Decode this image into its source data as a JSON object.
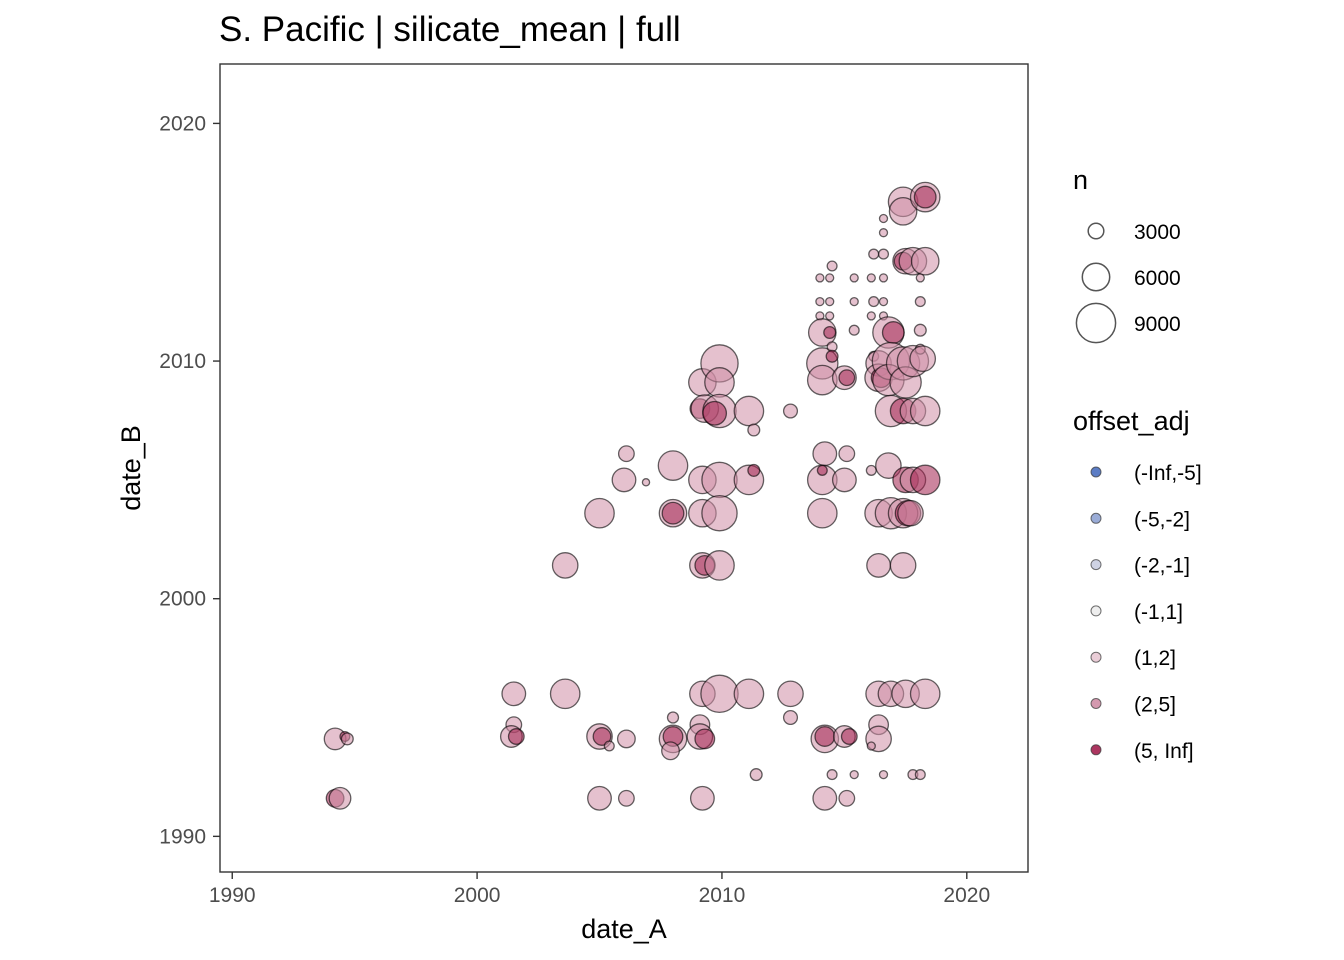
{
  "chart_data": {
    "type": "scatter",
    "title": "S. Pacific | silicate_mean | full",
    "xlabel": "date_A",
    "ylabel": "date_B",
    "xlim": [
      1989.5,
      2022.5
    ],
    "ylim": [
      1988.5,
      2022.5
    ],
    "x_ticks": [
      "1990",
      "2000",
      "2010",
      "2020"
    ],
    "y_ticks": [
      "1990",
      "2000",
      "2010",
      "2020"
    ],
    "grid": false,
    "legend_position": "right",
    "size_legend": {
      "title": "n",
      "entries": [
        {
          "label": "3000",
          "value": 3000
        },
        {
          "label": "6000",
          "value": 6000
        },
        {
          "label": "9000",
          "value": 9000
        }
      ]
    },
    "color_legend": {
      "title": "offset_adj",
      "entries": [
        {
          "label": "(-Inf,-5]",
          "color": "#4a6fbf"
        },
        {
          "label": "(-5,-2]",
          "color": "#8fa3d3"
        },
        {
          "label": "(-2,-1]",
          "color": "#c9cde0"
        },
        {
          "label": "(-1,1]",
          "color": "#ececec"
        },
        {
          "label": "(1,2]",
          "color": "#e8c8d3"
        },
        {
          "label": "(2,5]",
          "color": "#cf8ea6"
        },
        {
          "label": "(5, Inf]",
          "color": "#a3204f"
        }
      ]
    },
    "point_opacity": 0.55,
    "points": [
      {
        "x": 1994.2,
        "y": 1991.6,
        "n": 3500,
        "cls": "(5, Inf]"
      },
      {
        "x": 1994.4,
        "y": 1991.6,
        "n": 4500,
        "cls": "(2,5]"
      },
      {
        "x": 1994.2,
        "y": 1994.1,
        "n": 4500,
        "cls": "(2,5]"
      },
      {
        "x": 1994.6,
        "y": 1994.2,
        "n": 1500,
        "cls": "(5, Inf]"
      },
      {
        "x": 1994.7,
        "y": 1994.1,
        "n": 2000,
        "cls": "(2,5]"
      },
      {
        "x": 2001.5,
        "y": 1996.0,
        "n": 5000,
        "cls": "(2,5]"
      },
      {
        "x": 2001.5,
        "y": 1994.7,
        "n": 3000,
        "cls": "(2,5]"
      },
      {
        "x": 2001.4,
        "y": 1994.2,
        "n": 4500,
        "cls": "(2,5]"
      },
      {
        "x": 2001.6,
        "y": 1994.2,
        "n": 3000,
        "cls": "(5, Inf]"
      },
      {
        "x": 2003.6,
        "y": 1996.0,
        "n": 6500,
        "cls": "(2,5]"
      },
      {
        "x": 2003.6,
        "y": 2001.4,
        "n": 5500,
        "cls": "(2,5]"
      },
      {
        "x": 2005.0,
        "y": 2003.6,
        "n": 6500,
        "cls": "(2,5]"
      },
      {
        "x": 2005.0,
        "y": 1994.2,
        "n": 5500,
        "cls": "(2,5]"
      },
      {
        "x": 2005.1,
        "y": 1994.2,
        "n": 3500,
        "cls": "(5, Inf]"
      },
      {
        "x": 2005.4,
        "y": 1993.8,
        "n": 1500,
        "cls": "(2,5]"
      },
      {
        "x": 2005.0,
        "y": 1991.6,
        "n": 5000,
        "cls": "(2,5]"
      },
      {
        "x": 2006.1,
        "y": 2006.1,
        "n": 3000,
        "cls": "(2,5]"
      },
      {
        "x": 2006.0,
        "y": 2005.0,
        "n": 5000,
        "cls": "(2,5]"
      },
      {
        "x": 2006.1,
        "y": 1994.1,
        "n": 3500,
        "cls": "(2,5]"
      },
      {
        "x": 2006.1,
        "y": 1991.6,
        "n": 3000,
        "cls": "(2,5]"
      },
      {
        "x": 2006.9,
        "y": 2004.9,
        "n": 800,
        "cls": "(2,5]"
      },
      {
        "x": 2008.0,
        "y": 2005.6,
        "n": 6500,
        "cls": "(2,5]"
      },
      {
        "x": 2008.0,
        "y": 2003.6,
        "n": 6000,
        "cls": "(2,5]"
      },
      {
        "x": 2008.0,
        "y": 2003.6,
        "n": 4500,
        "cls": "(5, Inf]"
      },
      {
        "x": 2008.0,
        "y": 1994.1,
        "n": 6000,
        "cls": "(2,5]"
      },
      {
        "x": 2008.0,
        "y": 1994.2,
        "n": 4000,
        "cls": "(5, Inf]"
      },
      {
        "x": 2008.0,
        "y": 1995.0,
        "n": 1800,
        "cls": "(2,5]"
      },
      {
        "x": 2007.9,
        "y": 1993.6,
        "n": 3500,
        "cls": "(2,5]"
      },
      {
        "x": 2009.2,
        "y": 2009.1,
        "n": 6000,
        "cls": "(2,5]"
      },
      {
        "x": 2009.1,
        "y": 2008.0,
        "n": 4000,
        "cls": "(5, Inf]"
      },
      {
        "x": 2009.3,
        "y": 2008.0,
        "n": 6000,
        "cls": "(2,5]"
      },
      {
        "x": 2009.2,
        "y": 2005.0,
        "n": 6000,
        "cls": "(2,5]"
      },
      {
        "x": 2009.2,
        "y": 2003.6,
        "n": 6000,
        "cls": "(2,5]"
      },
      {
        "x": 2009.2,
        "y": 2001.4,
        "n": 5500,
        "cls": "(2,5]"
      },
      {
        "x": 2009.3,
        "y": 2001.4,
        "n": 4000,
        "cls": "(5, Inf]"
      },
      {
        "x": 2009.2,
        "y": 1996.0,
        "n": 5500,
        "cls": "(2,5]"
      },
      {
        "x": 2009.1,
        "y": 1994.7,
        "n": 4000,
        "cls": "(2,5]"
      },
      {
        "x": 2009.1,
        "y": 1994.2,
        "n": 5500,
        "cls": "(2,5]"
      },
      {
        "x": 2009.3,
        "y": 1994.1,
        "n": 4000,
        "cls": "(5, Inf]"
      },
      {
        "x": 2009.2,
        "y": 1991.6,
        "n": 5000,
        "cls": "(2,5]"
      },
      {
        "x": 2009.9,
        "y": 2009.9,
        "n": 8500,
        "cls": "(2,5]"
      },
      {
        "x": 2009.9,
        "y": 2009.1,
        "n": 6500,
        "cls": "(2,5]"
      },
      {
        "x": 2009.9,
        "y": 2007.9,
        "n": 7500,
        "cls": "(2,5]"
      },
      {
        "x": 2009.7,
        "y": 2007.8,
        "n": 5000,
        "cls": "(5, Inf]"
      },
      {
        "x": 2009.9,
        "y": 2005.0,
        "n": 8000,
        "cls": "(2,5]"
      },
      {
        "x": 2009.9,
        "y": 2003.6,
        "n": 8000,
        "cls": "(2,5]"
      },
      {
        "x": 2009.9,
        "y": 2001.4,
        "n": 6500,
        "cls": "(2,5]"
      },
      {
        "x": 2009.9,
        "y": 1996.0,
        "n": 8500,
        "cls": "(2,5]"
      },
      {
        "x": 2011.1,
        "y": 2007.9,
        "n": 6500,
        "cls": "(2,5]"
      },
      {
        "x": 2011.3,
        "y": 2007.1,
        "n": 2000,
        "cls": "(2,5]"
      },
      {
        "x": 2011.1,
        "y": 2005.0,
        "n": 6500,
        "cls": "(2,5]"
      },
      {
        "x": 2011.3,
        "y": 2005.4,
        "n": 2000,
        "cls": "(5, Inf]"
      },
      {
        "x": 2011.1,
        "y": 1996.0,
        "n": 6500,
        "cls": "(2,5]"
      },
      {
        "x": 2011.4,
        "y": 1992.6,
        "n": 2000,
        "cls": "(2,5]"
      },
      {
        "x": 2012.8,
        "y": 2007.9,
        "n": 2500,
        "cls": "(2,5]"
      },
      {
        "x": 2012.8,
        "y": 1996.0,
        "n": 5500,
        "cls": "(2,5]"
      },
      {
        "x": 2012.8,
        "y": 1995.0,
        "n": 2500,
        "cls": "(2,5]"
      },
      {
        "x": 2014.0,
        "y": 2013.5,
        "n": 1000,
        "cls": "(2,5]"
      },
      {
        "x": 2014.0,
        "y": 2012.5,
        "n": 1000,
        "cls": "(2,5]"
      },
      {
        "x": 2014.0,
        "y": 2011.9,
        "n": 1000,
        "cls": "(2,5]"
      },
      {
        "x": 2014.1,
        "y": 2011.2,
        "n": 6000,
        "cls": "(2,5]"
      },
      {
        "x": 2014.1,
        "y": 2009.9,
        "n": 7000,
        "cls": "(2,5]"
      },
      {
        "x": 2014.1,
        "y": 2009.2,
        "n": 6500,
        "cls": "(2,5]"
      },
      {
        "x": 2014.2,
        "y": 2006.1,
        "n": 5000,
        "cls": "(2,5]"
      },
      {
        "x": 2014.1,
        "y": 2005.0,
        "n": 6500,
        "cls": "(2,5]"
      },
      {
        "x": 2014.1,
        "y": 2005.4,
        "n": 1500,
        "cls": "(5, Inf]"
      },
      {
        "x": 2014.1,
        "y": 2003.6,
        "n": 6500,
        "cls": "(2,5]"
      },
      {
        "x": 2014.2,
        "y": 1994.1,
        "n": 6000,
        "cls": "(2,5]"
      },
      {
        "x": 2014.2,
        "y": 1994.2,
        "n": 4000,
        "cls": "(5, Inf]"
      },
      {
        "x": 2014.2,
        "y": 1991.6,
        "n": 5000,
        "cls": "(2,5]"
      },
      {
        "x": 2014.5,
        "y": 2014.0,
        "n": 1500,
        "cls": "(2,5]"
      },
      {
        "x": 2014.4,
        "y": 2013.5,
        "n": 1000,
        "cls": "(2,5]"
      },
      {
        "x": 2014.4,
        "y": 2012.5,
        "n": 1000,
        "cls": "(2,5]"
      },
      {
        "x": 2014.4,
        "y": 2011.9,
        "n": 1000,
        "cls": "(2,5]"
      },
      {
        "x": 2014.4,
        "y": 2011.2,
        "n": 2000,
        "cls": "(5, Inf]"
      },
      {
        "x": 2014.5,
        "y": 2010.6,
        "n": 1500,
        "cls": "(2,5]"
      },
      {
        "x": 2014.5,
        "y": 2010.2,
        "n": 2000,
        "cls": "(5, Inf]"
      },
      {
        "x": 2014.5,
        "y": 1992.6,
        "n": 1500,
        "cls": "(2,5]"
      },
      {
        "x": 2015.0,
        "y": 2009.3,
        "n": 5000,
        "cls": "(2,5]"
      },
      {
        "x": 2015.1,
        "y": 2009.3,
        "n": 3000,
        "cls": "(5, Inf]"
      },
      {
        "x": 2015.1,
        "y": 2006.1,
        "n": 3000,
        "cls": "(2,5]"
      },
      {
        "x": 2015.0,
        "y": 2005.0,
        "n": 5000,
        "cls": "(2,5]"
      },
      {
        "x": 2015.0,
        "y": 1994.2,
        "n": 4500,
        "cls": "(2,5]"
      },
      {
        "x": 2015.2,
        "y": 1994.2,
        "n": 3000,
        "cls": "(5, Inf]"
      },
      {
        "x": 2015.1,
        "y": 1991.6,
        "n": 3000,
        "cls": "(2,5]"
      },
      {
        "x": 2015.4,
        "y": 2013.5,
        "n": 1000,
        "cls": "(2,5]"
      },
      {
        "x": 2015.4,
        "y": 2012.5,
        "n": 1000,
        "cls": "(2,5]"
      },
      {
        "x": 2015.4,
        "y": 2011.3,
        "n": 1500,
        "cls": "(2,5]"
      },
      {
        "x": 2015.4,
        "y": 1992.6,
        "n": 1000,
        "cls": "(2,5]"
      },
      {
        "x": 2016.2,
        "y": 2014.5,
        "n": 1500,
        "cls": "(2,5]"
      },
      {
        "x": 2016.2,
        "y": 2012.5,
        "n": 1500,
        "cls": "(2,5]"
      },
      {
        "x": 2016.1,
        "y": 2013.5,
        "n": 1000,
        "cls": "(2,5]"
      },
      {
        "x": 2016.1,
        "y": 2011.9,
        "n": 1000,
        "cls": "(2,5]"
      },
      {
        "x": 2016.2,
        "y": 2010.2,
        "n": 1500,
        "cls": "(2,5]"
      },
      {
        "x": 2016.4,
        "y": 2009.9,
        "n": 5500,
        "cls": "(2,5]"
      },
      {
        "x": 2016.4,
        "y": 2009.3,
        "n": 6000,
        "cls": "(2,5]"
      },
      {
        "x": 2016.5,
        "y": 2009.3,
        "n": 4000,
        "cls": "(5, Inf]"
      },
      {
        "x": 2016.1,
        "y": 2005.4,
        "n": 1500,
        "cls": "(2,5]"
      },
      {
        "x": 2016.4,
        "y": 2003.6,
        "n": 6000,
        "cls": "(2,5]"
      },
      {
        "x": 2016.4,
        "y": 2001.4,
        "n": 5000,
        "cls": "(2,5]"
      },
      {
        "x": 2016.4,
        "y": 1996.0,
        "n": 5500,
        "cls": "(2,5]"
      },
      {
        "x": 2016.4,
        "y": 1994.7,
        "n": 4000,
        "cls": "(2,5]"
      },
      {
        "x": 2016.4,
        "y": 1994.1,
        "n": 5500,
        "cls": "(2,5]"
      },
      {
        "x": 2016.1,
        "y": 1993.8,
        "n": 1000,
        "cls": "(2,5]"
      },
      {
        "x": 2016.6,
        "y": 2016.0,
        "n": 1000,
        "cls": "(2,5]"
      },
      {
        "x": 2016.6,
        "y": 2015.4,
        "n": 1000,
        "cls": "(2,5]"
      },
      {
        "x": 2016.6,
        "y": 2014.5,
        "n": 1500,
        "cls": "(2,5]"
      },
      {
        "x": 2016.6,
        "y": 2013.5,
        "n": 1000,
        "cls": "(2,5]"
      },
      {
        "x": 2016.6,
        "y": 2012.5,
        "n": 1000,
        "cls": "(2,5]"
      },
      {
        "x": 2016.6,
        "y": 2011.9,
        "n": 1000,
        "cls": "(2,5]"
      },
      {
        "x": 2016.6,
        "y": 1992.6,
        "n": 1000,
        "cls": "(2,5]"
      },
      {
        "x": 2016.8,
        "y": 2011.2,
        "n": 7000,
        "cls": "(2,5]"
      },
      {
        "x": 2017.0,
        "y": 2011.2,
        "n": 4500,
        "cls": "(5, Inf]"
      },
      {
        "x": 2016.9,
        "y": 2010.0,
        "n": 8500,
        "cls": "(2,5]"
      },
      {
        "x": 2016.8,
        "y": 2009.2,
        "n": 7000,
        "cls": "(2,5]"
      },
      {
        "x": 2016.9,
        "y": 2007.9,
        "n": 7000,
        "cls": "(2,5]"
      },
      {
        "x": 2016.8,
        "y": 2005.6,
        "n": 5500,
        "cls": "(2,5]"
      },
      {
        "x": 2016.9,
        "y": 2003.6,
        "n": 7000,
        "cls": "(2,5]"
      },
      {
        "x": 2016.9,
        "y": 1996.0,
        "n": 5500,
        "cls": "(2,5]"
      },
      {
        "x": 2017.4,
        "y": 2016.7,
        "n": 6500,
        "cls": "(2,5]"
      },
      {
        "x": 2017.4,
        "y": 2016.3,
        "n": 6000,
        "cls": "(2,5]"
      },
      {
        "x": 2017.5,
        "y": 2014.2,
        "n": 5500,
        "cls": "(2,5]"
      },
      {
        "x": 2017.4,
        "y": 2014.2,
        "n": 3500,
        "cls": "(5, Inf]"
      },
      {
        "x": 2017.4,
        "y": 2009.9,
        "n": 7500,
        "cls": "(2,5]"
      },
      {
        "x": 2017.5,
        "y": 2009.1,
        "n": 7000,
        "cls": "(2,5]"
      },
      {
        "x": 2017.4,
        "y": 2007.9,
        "n": 5500,
        "cls": "(5, Inf]"
      },
      {
        "x": 2017.5,
        "y": 2005.0,
        "n": 5500,
        "cls": "(5, Inf]"
      },
      {
        "x": 2017.4,
        "y": 2003.6,
        "n": 6500,
        "cls": "(2,5]"
      },
      {
        "x": 2017.6,
        "y": 2003.6,
        "n": 5500,
        "cls": "(5, Inf]"
      },
      {
        "x": 2017.4,
        "y": 2001.4,
        "n": 5500,
        "cls": "(2,5]"
      },
      {
        "x": 2017.5,
        "y": 1996.0,
        "n": 6000,
        "cls": "(2,5]"
      },
      {
        "x": 2017.8,
        "y": 2014.2,
        "n": 6000,
        "cls": "(2,5]"
      },
      {
        "x": 2017.8,
        "y": 2010.0,
        "n": 7000,
        "cls": "(2,5]"
      },
      {
        "x": 2017.8,
        "y": 2007.9,
        "n": 5500,
        "cls": "(2,5]"
      },
      {
        "x": 2017.8,
        "y": 2005.0,
        "n": 5500,
        "cls": "(2,5]"
      },
      {
        "x": 2017.7,
        "y": 2003.6,
        "n": 5500,
        "cls": "(2,5]"
      },
      {
        "x": 2017.8,
        "y": 1992.6,
        "n": 1500,
        "cls": "(2,5]"
      },
      {
        "x": 2018.3,
        "y": 2016.9,
        "n": 6500,
        "cls": "(2,5]"
      },
      {
        "x": 2018.3,
        "y": 2016.9,
        "n": 4500,
        "cls": "(5, Inf]"
      },
      {
        "x": 2018.3,
        "y": 2014.2,
        "n": 6000,
        "cls": "(2,5]"
      },
      {
        "x": 2018.1,
        "y": 2013.5,
        "n": 1000,
        "cls": "(2,5]"
      },
      {
        "x": 2018.1,
        "y": 2012.5,
        "n": 1500,
        "cls": "(2,5]"
      },
      {
        "x": 2018.1,
        "y": 2011.3,
        "n": 2000,
        "cls": "(2,5]"
      },
      {
        "x": 2018.1,
        "y": 2010.5,
        "n": 1500,
        "cls": "(2,5]"
      },
      {
        "x": 2018.2,
        "y": 2010.1,
        "n": 5500,
        "cls": "(2,5]"
      },
      {
        "x": 2018.3,
        "y": 2007.9,
        "n": 6500,
        "cls": "(2,5]"
      },
      {
        "x": 2018.3,
        "y": 2005.0,
        "n": 6500,
        "cls": "(5, Inf]"
      },
      {
        "x": 2018.3,
        "y": 1996.0,
        "n": 6500,
        "cls": "(2,5]"
      },
      {
        "x": 2018.1,
        "y": 1992.6,
        "n": 1500,
        "cls": "(2,5]"
      }
    ]
  }
}
